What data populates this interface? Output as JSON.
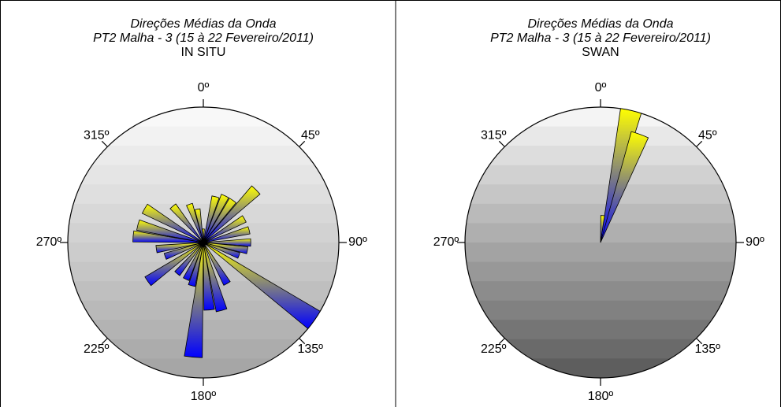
{
  "chart_data": [
    {
      "type": "rose",
      "title": "Direções Médias da Onda",
      "subtitle": "PT2 Malha - 3 (15 à 22 Fevereiro/2011)",
      "label": "IN SITU",
      "directions": [
        0,
        15,
        25,
        35,
        45,
        60,
        75,
        90,
        100,
        110,
        125,
        150,
        165,
        175,
        185,
        195,
        205,
        220,
        235,
        250,
        262,
        275,
        285,
        300,
        320,
        340,
        350
      ],
      "values": [
        0.1,
        0.35,
        0.38,
        0.38,
        0.55,
        0.35,
        0.35,
        0.35,
        0.33,
        0.28,
        1.0,
        0.35,
        0.52,
        0.5,
        0.85,
        0.33,
        0.3,
        0.3,
        0.5,
        0.3,
        0.35,
        0.52,
        0.5,
        0.5,
        0.35,
        0.3,
        0.25
      ],
      "rlim": [
        0,
        1
      ],
      "xticks": [
        {
          "value": 0,
          "label": "0º"
        },
        {
          "value": 45,
          "label": "45º"
        },
        {
          "value": 90,
          "label": "90º"
        },
        {
          "value": 135,
          "label": "135º"
        },
        {
          "value": 180,
          "label": "180º"
        },
        {
          "value": 225,
          "label": "225º"
        },
        {
          "value": 270,
          "label": "270º"
        },
        {
          "value": 315,
          "label": "315º"
        }
      ],
      "colors": [
        "#ffff00",
        "#0000ff"
      ],
      "background_colors": [
        "#f8f8f8",
        "#a6a6a6"
      ]
    },
    {
      "type": "rose",
      "title": "Direções Médias da Onda",
      "subtitle": "PT2 Malha - 3 (15 à 22 Fevereiro/2011)",
      "label": "SWAN",
      "directions": [
        5,
        13,
        20
      ],
      "values": [
        0.2,
        1.0,
        0.85
      ],
      "rlim": [
        0,
        1
      ],
      "xticks": [
        {
          "value": 0,
          "label": "0º"
        },
        {
          "value": 45,
          "label": "45º"
        },
        {
          "value": 90,
          "label": "90º"
        },
        {
          "value": 135,
          "label": "135º"
        },
        {
          "value": 180,
          "label": "180º"
        },
        {
          "value": 225,
          "label": "225º"
        },
        {
          "value": 270,
          "label": "270º"
        },
        {
          "value": 315,
          "label": "315º"
        }
      ],
      "colors": [
        "#ffff00",
        "#0000ff"
      ],
      "background_colors": [
        "#f4f4f4",
        "#5e5e5e"
      ]
    }
  ]
}
